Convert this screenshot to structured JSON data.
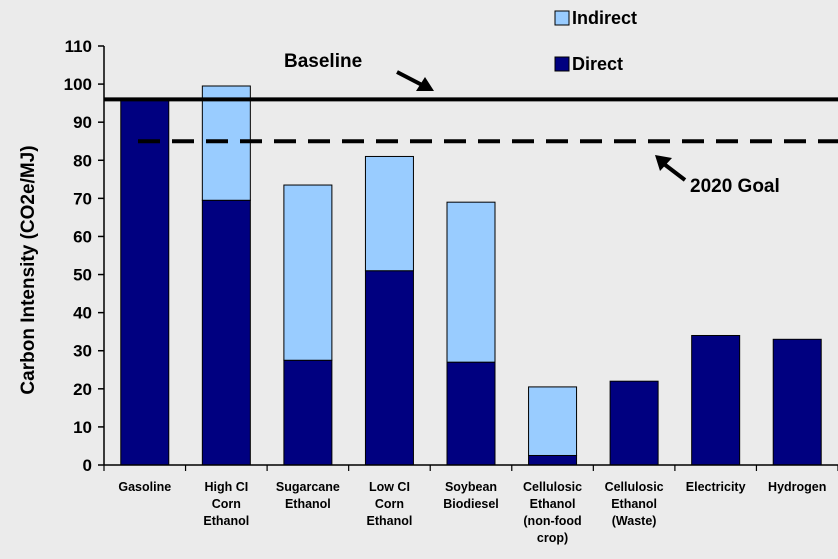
{
  "chart_data": {
    "type": "bar",
    "stacked": true,
    "ylabel": "Carbon Intensity (CO2e/MJ)",
    "ylim": [
      0,
      110
    ],
    "yticks": [
      "0",
      "10",
      "20",
      "30",
      "40",
      "50",
      "60",
      "70",
      "80",
      "90",
      "100",
      "110"
    ],
    "categories": [
      [
        "Gasoline"
      ],
      [
        "High CI",
        "Corn",
        "Ethanol"
      ],
      [
        "Sugarcane",
        "Ethanol"
      ],
      [
        "Low CI",
        "Corn",
        "Ethanol"
      ],
      [
        "Soybean",
        "Biodiesel"
      ],
      [
        "Cellulosic",
        "Ethanol",
        "(non-food",
        "crop)"
      ],
      [
        "Cellulosic",
        "Ethanol",
        "(Waste)"
      ],
      [
        "Electricity"
      ],
      [
        "Hydrogen"
      ]
    ],
    "series": [
      {
        "name": "Direct",
        "color": "#000080",
        "values": [
          96,
          69.5,
          27.5,
          51,
          27,
          2.5,
          22,
          34,
          33
        ]
      },
      {
        "name": "Indirect",
        "color": "#99ccff",
        "values": [
          0,
          30,
          46,
          30,
          42,
          18,
          0,
          0,
          0
        ]
      }
    ],
    "legend": {
      "position": "top-right",
      "items": [
        {
          "label": "Indirect",
          "color": "#99ccff"
        },
        {
          "label": "Direct",
          "color": "#000080"
        }
      ]
    },
    "reference_lines": [
      {
        "label": "Baseline",
        "value": 96,
        "style": "solid"
      },
      {
        "label": "2020 Goal",
        "value": 85,
        "style": "dashed"
      }
    ],
    "grid": false
  }
}
